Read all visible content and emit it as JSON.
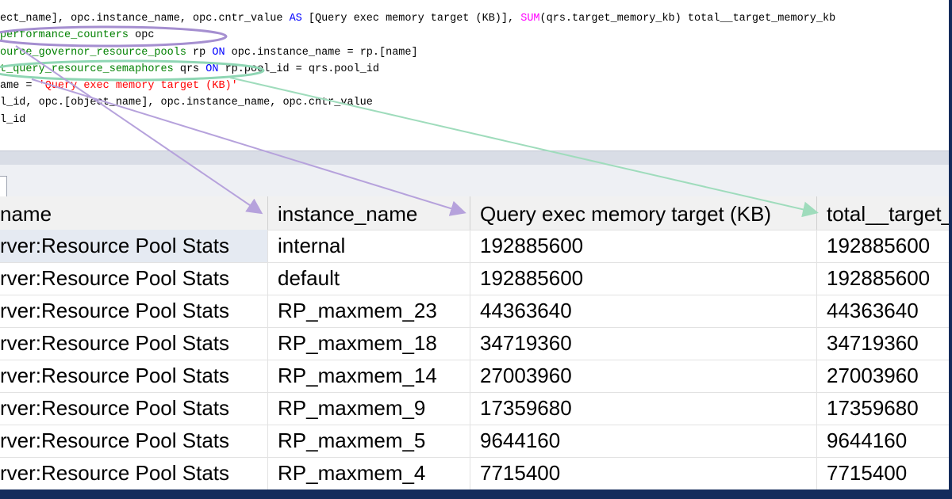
{
  "code": {
    "lines": [
      {
        "tokens": [
          {
            "text": "ect_name], opc.instance_name, opc.cntr_value ",
            "color": "#000000"
          },
          {
            "text": "AS",
            "color": "#0000ff"
          },
          {
            "text": " [Query exec memory target (KB)], ",
            "color": "#000000"
          },
          {
            "text": "SUM",
            "color": "#ff00ff"
          },
          {
            "text": "(qrs.target_memory_kb) total__target_memory_kb",
            "color": "#000000"
          }
        ]
      },
      {
        "tokens": [
          {
            "text": "performance_counters",
            "color": "#008000"
          },
          {
            "text": " opc",
            "color": "#000000"
          }
        ]
      },
      {
        "tokens": [
          {
            "text": "ource_governor_resource_pools",
            "color": "#008000"
          },
          {
            "text": " rp ",
            "color": "#000000"
          },
          {
            "text": "ON",
            "color": "#0000ff"
          },
          {
            "text": " opc.instance_name = rp.[name]",
            "color": "#000000"
          }
        ]
      },
      {
        "tokens": [
          {
            "text": "t_query_resource_semaphores",
            "color": "#008000"
          },
          {
            "text": " qrs ",
            "color": "#000000"
          },
          {
            "text": "ON",
            "color": "#0000ff"
          },
          {
            "text": " rp.pool_id = qrs.pool_id",
            "color": "#000000"
          }
        ]
      },
      {
        "tokens": [
          {
            "text": "ame = ",
            "color": "#000000"
          },
          {
            "text": "'Query exec memory target (KB)'",
            "color": "#ff0000"
          }
        ]
      },
      {
        "tokens": [
          {
            "text": "l_id, opc.[object_name], opc.instance_name, opc.cntr_value",
            "color": "#000000"
          }
        ]
      },
      {
        "tokens": [
          {
            "text": "l_id",
            "color": "#000000"
          }
        ]
      }
    ]
  },
  "table": {
    "headers": [
      "name",
      "instance_name",
      "Query exec memory target (KB)",
      "total__target_"
    ],
    "rows": [
      [
        "rver:Resource Pool Stats",
        "internal",
        "192885600",
        "192885600"
      ],
      [
        "rver:Resource Pool Stats",
        "default",
        "192885600",
        "192885600"
      ],
      [
        "rver:Resource Pool Stats",
        "RP_maxmem_23",
        "44363640",
        "44363640"
      ],
      [
        "rver:Resource Pool Stats",
        "RP_maxmem_18",
        "34719360",
        "34719360"
      ],
      [
        "rver:Resource Pool Stats",
        "RP_maxmem_14",
        "27003960",
        "27003960"
      ],
      [
        "rver:Resource Pool Stats",
        "RP_maxmem_9",
        "17359680",
        "17359680"
      ],
      [
        "rver:Resource Pool Stats",
        "RP_maxmem_5",
        "9644160",
        "9644160"
      ],
      [
        "rver:Resource Pool Stats",
        "RP_maxmem_4",
        "7715400",
        "7715400"
      ]
    ]
  }
}
